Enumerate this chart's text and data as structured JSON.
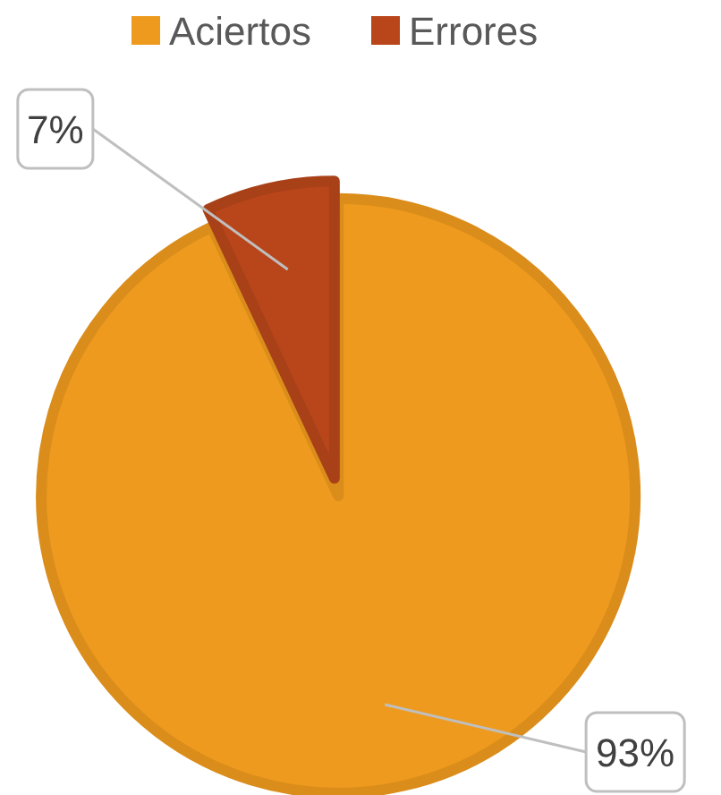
{
  "chart_data": {
    "type": "pie",
    "categories": [
      "Aciertos",
      "Errores"
    ],
    "values": [
      93,
      7
    ],
    "colors": [
      "#ee9a1e",
      "#b8461a"
    ],
    "value_labels": [
      "93%",
      "7%"
    ],
    "legend": "top"
  }
}
